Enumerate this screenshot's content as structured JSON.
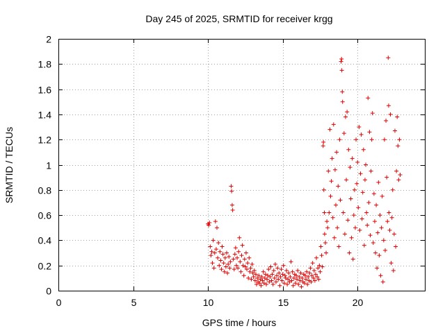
{
  "chart_data": {
    "type": "scatter",
    "title": "Day 245 of 2025, SRMTID for receiver krgg",
    "xlabel": "GPS time / hours",
    "ylabel": "SRMTID / TECUs",
    "xlim": [
      0,
      24.5
    ],
    "ylim": [
      0,
      2
    ],
    "xticks": [
      0,
      5,
      10,
      15,
      20
    ],
    "xtick_labels": [
      "0",
      "5",
      "10",
      "15",
      "20"
    ],
    "yticks": [
      0,
      0.2,
      0.4,
      0.6,
      0.8,
      1,
      1.2,
      1.4,
      1.6,
      1.8,
      2
    ],
    "ytick_labels": [
      "0",
      "0.2",
      "0.4",
      "0.6",
      "0.8",
      "1",
      "1.2",
      "1.4",
      "1.6",
      "1.8",
      "2"
    ],
    "grid": true,
    "marker": "+",
    "color": "#e00000",
    "series": [
      {
        "name": "SRMTID",
        "points": [
          [
            10.0,
            0.53
          ],
          [
            10.05,
            0.52
          ],
          [
            10.1,
            0.54
          ],
          [
            10.15,
            0.35
          ],
          [
            10.2,
            0.28
          ],
          [
            10.25,
            0.31
          ],
          [
            10.3,
            0.22
          ],
          [
            10.35,
            0.4
          ],
          [
            10.4,
            0.18
          ],
          [
            10.45,
            0.3
          ],
          [
            10.5,
            0.55
          ],
          [
            10.55,
            0.33
          ],
          [
            10.6,
            0.5
          ],
          [
            10.65,
            0.26
          ],
          [
            10.7,
            0.38
          ],
          [
            10.75,
            0.2
          ],
          [
            10.8,
            0.31
          ],
          [
            10.85,
            0.24
          ],
          [
            10.9,
            0.17
          ],
          [
            10.95,
            0.35
          ],
          [
            11.0,
            0.29
          ],
          [
            11.05,
            0.22
          ],
          [
            11.1,
            0.15
          ],
          [
            11.15,
            0.26
          ],
          [
            11.2,
            0.19
          ],
          [
            11.25,
            0.3
          ],
          [
            11.3,
            0.14
          ],
          [
            11.35,
            0.21
          ],
          [
            11.4,
            0.27
          ],
          [
            11.45,
            0.18
          ],
          [
            11.5,
            0.23
          ],
          [
            11.55,
            0.83
          ],
          [
            11.58,
            0.79
          ],
          [
            11.62,
            0.68
          ],
          [
            11.65,
            0.64
          ],
          [
            11.7,
            0.25
          ],
          [
            11.75,
            0.17
          ],
          [
            11.8,
            0.29
          ],
          [
            11.85,
            0.34
          ],
          [
            11.9,
            0.2
          ],
          [
            11.95,
            0.26
          ],
          [
            12.0,
            0.18
          ],
          [
            12.05,
            0.31
          ],
          [
            12.1,
            0.42
          ],
          [
            12.15,
            0.23
          ],
          [
            12.2,
            0.15
          ],
          [
            12.25,
            0.28
          ],
          [
            12.3,
            0.36
          ],
          [
            12.35,
            0.2
          ],
          [
            12.4,
            0.12
          ],
          [
            12.45,
            0.25
          ],
          [
            12.5,
            0.19
          ],
          [
            12.55,
            0.3
          ],
          [
            12.6,
            0.17
          ],
          [
            12.65,
            0.22
          ],
          [
            12.7,
            0.1
          ],
          [
            12.75,
            0.26
          ],
          [
            12.8,
            0.15
          ],
          [
            12.85,
            0.18
          ],
          [
            12.9,
            0.09
          ],
          [
            12.95,
            0.21
          ],
          [
            13.0,
            0.14
          ],
          [
            13.05,
            0.11
          ],
          [
            13.1,
            0.16
          ],
          [
            13.15,
            0.08
          ],
          [
            13.2,
            0.13
          ],
          [
            13.25,
            0.05
          ],
          [
            13.3,
            0.1
          ],
          [
            13.35,
            0.07
          ],
          [
            13.4,
            0.12
          ],
          [
            13.45,
            0.06
          ],
          [
            13.5,
            0.09
          ],
          [
            13.55,
            0.04
          ],
          [
            13.6,
            0.11
          ],
          [
            13.65,
            0.08
          ],
          [
            13.7,
            0.15
          ],
          [
            13.75,
            0.06
          ],
          [
            13.8,
            0.1
          ],
          [
            13.85,
            0.13
          ],
          [
            13.9,
            0.05
          ],
          [
            13.95,
            0.09
          ],
          [
            14.0,
            0.12
          ],
          [
            14.05,
            0.17
          ],
          [
            14.1,
            0.07
          ],
          [
            14.15,
            0.11
          ],
          [
            14.2,
            0.19
          ],
          [
            14.25,
            0.08
          ],
          [
            14.3,
            0.13
          ],
          [
            14.35,
            0.05
          ],
          [
            14.4,
            0.16
          ],
          [
            14.45,
            0.1
          ],
          [
            14.5,
            0.21
          ],
          [
            14.55,
            0.07
          ],
          [
            14.6,
            0.12
          ],
          [
            14.65,
            0.18
          ],
          [
            14.7,
            0.09
          ],
          [
            14.75,
            0.14
          ],
          [
            14.8,
            0.04
          ],
          [
            14.85,
            0.11
          ],
          [
            14.9,
            0.17
          ],
          [
            14.95,
            0.08
          ],
          [
            15.0,
            0.13
          ],
          [
            15.05,
            0.2
          ],
          [
            15.1,
            0.06
          ],
          [
            15.15,
            0.12
          ],
          [
            15.2,
            0.1
          ],
          [
            15.25,
            0.16
          ],
          [
            15.3,
            0.05
          ],
          [
            15.35,
            0.09
          ],
          [
            15.4,
            0.14
          ],
          [
            15.45,
            0.07
          ],
          [
            15.5,
            0.11
          ],
          [
            15.55,
            0.23
          ],
          [
            15.6,
            0.08
          ],
          [
            15.65,
            0.15
          ],
          [
            15.7,
            0.04
          ],
          [
            15.75,
            0.1
          ],
          [
            15.8,
            0.13
          ],
          [
            15.85,
            0.06
          ],
          [
            15.9,
            0.12
          ],
          [
            15.95,
            0.09
          ],
          [
            16.0,
            0.16
          ],
          [
            16.05,
            0.05
          ],
          [
            16.1,
            0.11
          ],
          [
            16.15,
            0.08
          ],
          [
            16.2,
            0.14
          ],
          [
            16.25,
            0.03
          ],
          [
            16.3,
            0.1
          ],
          [
            16.35,
            0.07
          ],
          [
            16.4,
            0.13
          ],
          [
            16.45,
            0.06
          ],
          [
            16.5,
            0.12
          ],
          [
            16.55,
            0.09
          ],
          [
            16.6,
            0.15
          ],
          [
            16.65,
            0.05
          ],
          [
            16.7,
            0.11
          ],
          [
            16.75,
            0.08
          ],
          [
            16.8,
            0.14
          ],
          [
            16.85,
            0.18
          ],
          [
            16.9,
            0.07
          ],
          [
            16.95,
            0.12
          ],
          [
            17.0,
            0.22
          ],
          [
            17.05,
            0.1
          ],
          [
            17.1,
            0.16
          ],
          [
            17.15,
            0.08
          ],
          [
            17.2,
            0.13
          ],
          [
            17.25,
            0.26
          ],
          [
            17.3,
            0.11
          ],
          [
            17.35,
            0.18
          ],
          [
            17.4,
            0.09
          ],
          [
            17.45,
            0.2
          ],
          [
            17.5,
            0.15
          ],
          [
            17.55,
            0.35
          ],
          [
            17.6,
            0.28
          ],
          [
            17.65,
            0.19
          ],
          [
            17.7,
            1.15
          ],
          [
            17.72,
            1.18
          ],
          [
            17.75,
            0.8
          ],
          [
            17.78,
            0.62
          ],
          [
            17.8,
            0.45
          ],
          [
            17.85,
            0.38
          ],
          [
            17.9,
            0.3
          ],
          [
            17.95,
            0.55
          ],
          [
            18.0,
            0.5
          ],
          [
            18.05,
            0.95
          ],
          [
            18.1,
            0.62
          ],
          [
            18.15,
            1.28
          ],
          [
            18.2,
            0.75
          ],
          [
            18.25,
            0.87
          ],
          [
            18.3,
            1.05
          ],
          [
            18.35,
            0.58
          ],
          [
            18.4,
            1.32
          ],
          [
            18.45,
            0.42
          ],
          [
            18.5,
            0.96
          ],
          [
            18.55,
            0.68
          ],
          [
            18.6,
            1.1
          ],
          [
            18.65,
            0.5
          ],
          [
            18.7,
            0.83
          ],
          [
            18.75,
            0.35
          ],
          [
            18.8,
            1.2
          ],
          [
            18.85,
            0.72
          ],
          [
            18.9,
            1.82
          ],
          [
            18.93,
            1.84
          ],
          [
            18.95,
            1.75
          ],
          [
            18.98,
            1.58
          ],
          [
            19.0,
            1.5
          ],
          [
            19.05,
            0.62
          ],
          [
            19.1,
            1.25
          ],
          [
            19.15,
            0.45
          ],
          [
            19.2,
            1.38
          ],
          [
            19.25,
            0.88
          ],
          [
            19.3,
            1.42
          ],
          [
            19.35,
            0.56
          ],
          [
            19.4,
            1.12
          ],
          [
            19.45,
            0.3
          ],
          [
            19.5,
            0.98
          ],
          [
            19.55,
            0.73
          ],
          [
            19.6,
            0.42
          ],
          [
            19.65,
            1.05
          ],
          [
            19.7,
            0.25
          ],
          [
            19.75,
            0.6
          ],
          [
            19.8,
            0.8
          ],
          [
            19.85,
            0.5
          ],
          [
            19.9,
            1.2
          ],
          [
            19.95,
            0.85
          ],
          [
            20.0,
            1.02
          ],
          [
            20.05,
            0.66
          ],
          [
            20.1,
            1.3
          ],
          [
            20.15,
            0.48
          ],
          [
            20.2,
            0.93
          ],
          [
            20.25,
            1.24
          ],
          [
            20.3,
            0.57
          ],
          [
            20.35,
            0.78
          ],
          [
            20.4,
            1.12
          ],
          [
            20.45,
            0.36
          ],
          [
            20.5,
            0.88
          ],
          [
            20.55,
            1.0
          ],
          [
            20.6,
            0.62
          ],
          [
            20.65,
            0.52
          ],
          [
            20.7,
            1.53
          ],
          [
            20.75,
            0.7
          ],
          [
            20.8,
            1.26
          ],
          [
            20.85,
            0.44
          ],
          [
            20.9,
            0.95
          ],
          [
            20.95,
            1.2
          ],
          [
            21.0,
            1.41
          ],
          [
            21.05,
            0.38
          ],
          [
            21.1,
            0.77
          ],
          [
            21.15,
            0.55
          ],
          [
            21.2,
            0.3
          ],
          [
            21.25,
            0.68
          ],
          [
            21.3,
            0.18
          ],
          [
            21.35,
            0.46
          ],
          [
            21.4,
            0.86
          ],
          [
            21.45,
            0.28
          ],
          [
            21.5,
            0.6
          ],
          [
            21.55,
            0.12
          ],
          [
            21.6,
            0.5
          ],
          [
            21.65,
            0.75
          ],
          [
            21.7,
            0.07
          ],
          [
            21.75,
            0.4
          ],
          [
            21.8,
            1.2
          ],
          [
            21.85,
            0.32
          ],
          [
            21.9,
            1.35
          ],
          [
            21.95,
            0.9
          ],
          [
            22.0,
            0.55
          ],
          [
            22.05,
            1.85
          ],
          [
            22.08,
            1.47
          ],
          [
            22.1,
            0.62
          ],
          [
            22.15,
            0.48
          ],
          [
            22.2,
            1.4
          ],
          [
            22.25,
            0.22
          ],
          [
            22.3,
            0.58
          ],
          [
            22.35,
            0.8
          ],
          [
            22.4,
            0.16
          ],
          [
            22.45,
            0.45
          ],
          [
            22.5,
            1.27
          ],
          [
            22.55,
            0.35
          ],
          [
            22.6,
            0.95
          ],
          [
            22.65,
            1.38
          ],
          [
            22.7,
            1.15
          ],
          [
            22.75,
            0.88
          ],
          [
            22.8,
            1.2
          ],
          [
            22.85,
            0.92
          ]
        ]
      }
    ]
  }
}
